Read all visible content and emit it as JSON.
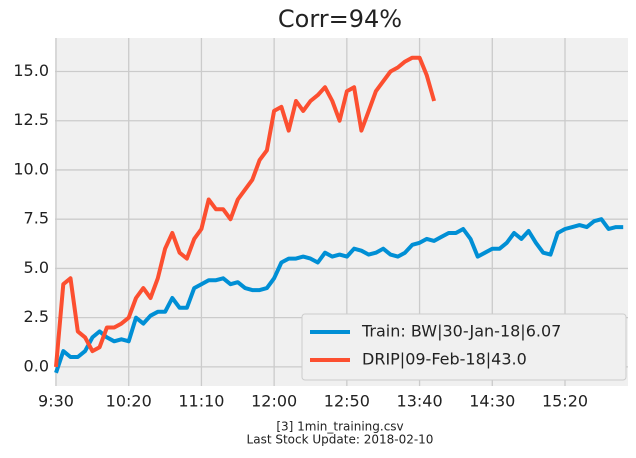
{
  "chart_data": {
    "type": "line",
    "title": "Corr=94%",
    "categories": [
      "9:30",
      null,
      null,
      null,
      null,
      null,
      null,
      null,
      null,
      null,
      "10:20",
      null,
      null,
      null,
      null,
      null,
      null,
      null,
      null,
      null,
      "11:10",
      null,
      null,
      null,
      null,
      null,
      null,
      null,
      null,
      null,
      "12:00",
      null,
      null,
      null,
      null,
      null,
      null,
      null,
      null,
      null,
      "12:50",
      null,
      null,
      null,
      null,
      null,
      null,
      null,
      null,
      null,
      "13:40",
      null,
      null,
      null,
      null,
      null,
      null,
      null,
      null,
      null,
      "14:30",
      null,
      null,
      null,
      null,
      null,
      null,
      null,
      null,
      null,
      "15:20",
      null,
      null,
      null,
      null,
      null,
      null,
      null,
      null
    ],
    "series": [
      {
        "name": "Train: BW|30-Jan-18|6.07",
        "color": "#008fd5",
        "values": [
          -0.3,
          0.8,
          0.5,
          0.5,
          0.8,
          1.5,
          1.8,
          1.5,
          1.3,
          1.4,
          1.3,
          2.5,
          2.2,
          2.6,
          2.8,
          2.8,
          3.5,
          3.0,
          3.0,
          4.0,
          4.2,
          4.4,
          4.4,
          4.5,
          4.2,
          4.3,
          4.0,
          3.9,
          3.9,
          4.0,
          4.5,
          5.3,
          5.5,
          5.5,
          5.6,
          5.5,
          5.3,
          5.8,
          5.6,
          5.7,
          5.6,
          6.0,
          5.9,
          5.7,
          5.8,
          6.0,
          5.7,
          5.6,
          5.8,
          6.2,
          6.3,
          6.5,
          6.4,
          6.6,
          6.8,
          6.8,
          7.0,
          6.5,
          5.6,
          5.8,
          6.0,
          6.0,
          6.3,
          6.8,
          6.5,
          6.9,
          6.3,
          5.8,
          5.7,
          6.8,
          7.0,
          7.1,
          7.2,
          7.1,
          7.4,
          7.5,
          7.0,
          7.1,
          7.1
        ]
      },
      {
        "name": "DRIP|09-Feb-18|43.0",
        "color": "#fc4f30",
        "values": [
          0.0,
          4.2,
          4.5,
          1.8,
          1.5,
          0.8,
          1.0,
          2.0,
          2.0,
          2.2,
          2.5,
          3.5,
          4.0,
          3.5,
          4.5,
          6.0,
          6.8,
          5.8,
          5.5,
          6.5,
          7.0,
          8.5,
          8.0,
          8.0,
          7.5,
          8.5,
          9.0,
          9.5,
          10.5,
          11.0,
          13.0,
          13.2,
          12.0,
          13.5,
          13.0,
          13.5,
          13.8,
          14.2,
          13.5,
          12.5,
          14.0,
          14.2,
          12.0,
          13.0,
          14.0,
          14.5,
          15.0,
          15.2,
          15.5,
          15.7,
          15.7,
          14.8,
          13.5,
          null,
          null,
          null,
          null,
          null,
          null,
          null,
          null,
          null,
          null,
          null,
          null,
          null,
          null,
          null,
          null,
          null,
          null,
          null,
          null,
          null,
          null,
          null,
          null,
          null,
          null
        ]
      }
    ],
    "ylim": [
      -0.97,
      16.7
    ],
    "yticks": [
      {
        "value": 0,
        "label": "0.0"
      },
      {
        "value": 2.5,
        "label": "2.5"
      },
      {
        "value": 5,
        "label": "5.0"
      },
      {
        "value": 7.5,
        "label": "7.5"
      },
      {
        "value": 10,
        "label": "10.0"
      },
      {
        "value": 12.5,
        "label": "12.5"
      },
      {
        "value": 15,
        "label": "15.0"
      }
    ],
    "grid": true,
    "legend": "lower right",
    "footer": [
      "[3] 1min_training.csv",
      "Last Stock Update: 2018-02-10"
    ]
  }
}
